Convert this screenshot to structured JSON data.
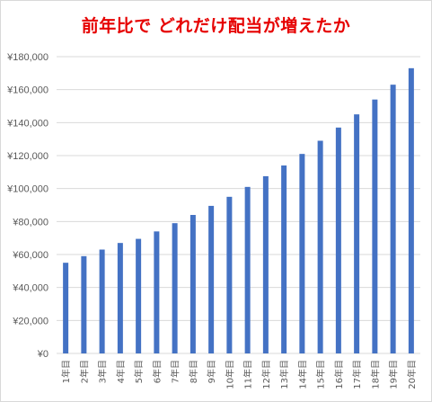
{
  "colors": {
    "bar": "#4472C4",
    "title": "#E60000",
    "grid": "#d9d9d9",
    "axis_text": "#595959"
  },
  "chart_data": {
    "type": "bar",
    "title": "前年比で どれだけ配当が増えたか",
    "xlabel": "",
    "ylabel": "",
    "ylim": [
      0,
      180000
    ],
    "grid": true,
    "legend": "none",
    "yticks": [
      "¥0",
      "¥20,000",
      "¥40,000",
      "¥60,000",
      "¥80,000",
      "¥100,000",
      "¥120,000",
      "¥140,000",
      "¥160,000",
      "¥180,000"
    ],
    "categories": [
      "1年目",
      "2年目",
      "3年目",
      "4年目",
      "5年目",
      "6年目",
      "7年目",
      "8年目",
      "9年目",
      "10年目",
      "11年目",
      "12年目",
      "13年目",
      "14年目",
      "15年目",
      "16年目",
      "17年目",
      "18年目",
      "19年目",
      "20年目"
    ],
    "values": [
      55000,
      59000,
      63000,
      67000,
      69500,
      74000,
      79000,
      84000,
      89500,
      95000,
      101000,
      107500,
      114000,
      121000,
      129000,
      137000,
      145000,
      154000,
      163000,
      173000
    ]
  }
}
